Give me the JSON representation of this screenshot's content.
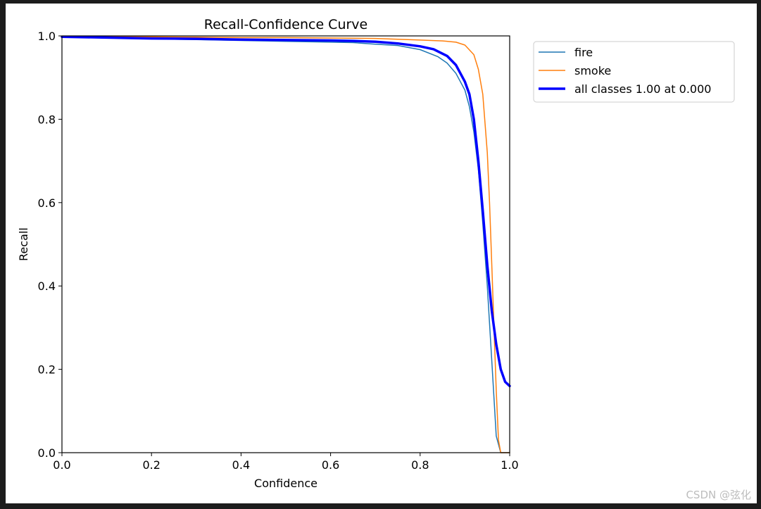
{
  "watermark": "CSDN @弦化",
  "chart_data": {
    "type": "line",
    "title": "Recall-Confidence Curve",
    "xlabel": "Confidence",
    "ylabel": "Recall",
    "xlim": [
      0.0,
      1.0
    ],
    "ylim": [
      0.0,
      1.0
    ],
    "xticks": [
      "0.0",
      "0.2",
      "0.4",
      "0.6",
      "0.8",
      "1.0"
    ],
    "yticks": [
      "0.0",
      "0.2",
      "0.4",
      "0.6",
      "0.8",
      "1.0"
    ],
    "grid": false,
    "legend_position": "outside-top-right",
    "series": [
      {
        "name": "fire",
        "color": "#1f77b4",
        "width": "thin",
        "x": [
          0.0,
          0.1,
          0.2,
          0.3,
          0.4,
          0.5,
          0.6,
          0.65,
          0.7,
          0.75,
          0.8,
          0.84,
          0.86,
          0.88,
          0.9,
          0.91,
          0.92,
          0.93,
          0.94,
          0.95,
          0.96,
          0.97,
          0.98,
          0.99,
          1.0
        ],
        "y": [
          0.998,
          0.995,
          0.993,
          0.991,
          0.989,
          0.987,
          0.985,
          0.984,
          0.98,
          0.977,
          0.967,
          0.95,
          0.935,
          0.91,
          0.87,
          0.83,
          0.77,
          0.68,
          0.55,
          0.4,
          0.22,
          0.04,
          0.0,
          0.0,
          0.0
        ]
      },
      {
        "name": "smoke",
        "color": "#ff7f0e",
        "width": "thin",
        "x": [
          0.0,
          0.1,
          0.2,
          0.3,
          0.4,
          0.5,
          0.6,
          0.7,
          0.8,
          0.85,
          0.88,
          0.9,
          0.92,
          0.93,
          0.94,
          0.95,
          0.955,
          0.96,
          0.965,
          0.97,
          0.975,
          0.98,
          0.985,
          0.99,
          1.0
        ],
        "y": [
          0.999,
          0.998,
          0.998,
          0.997,
          0.996,
          0.996,
          0.995,
          0.994,
          0.99,
          0.988,
          0.985,
          0.978,
          0.955,
          0.92,
          0.86,
          0.72,
          0.6,
          0.45,
          0.3,
          0.15,
          0.03,
          0.0,
          0.0,
          0.0,
          0.0
        ]
      },
      {
        "name": "all classes 1.00 at 0.000",
        "color": "#0000ff",
        "width": "thick",
        "x": [
          0.0,
          0.1,
          0.2,
          0.3,
          0.4,
          0.5,
          0.6,
          0.65,
          0.7,
          0.75,
          0.8,
          0.83,
          0.86,
          0.88,
          0.9,
          0.91,
          0.92,
          0.93,
          0.94,
          0.95,
          0.96,
          0.97,
          0.98,
          0.99,
          1.0
        ],
        "y": [
          0.998,
          0.996,
          0.994,
          0.993,
          0.991,
          0.99,
          0.989,
          0.988,
          0.986,
          0.982,
          0.975,
          0.968,
          0.952,
          0.93,
          0.89,
          0.86,
          0.8,
          0.7,
          0.58,
          0.45,
          0.34,
          0.26,
          0.2,
          0.17,
          0.16
        ]
      }
    ]
  }
}
